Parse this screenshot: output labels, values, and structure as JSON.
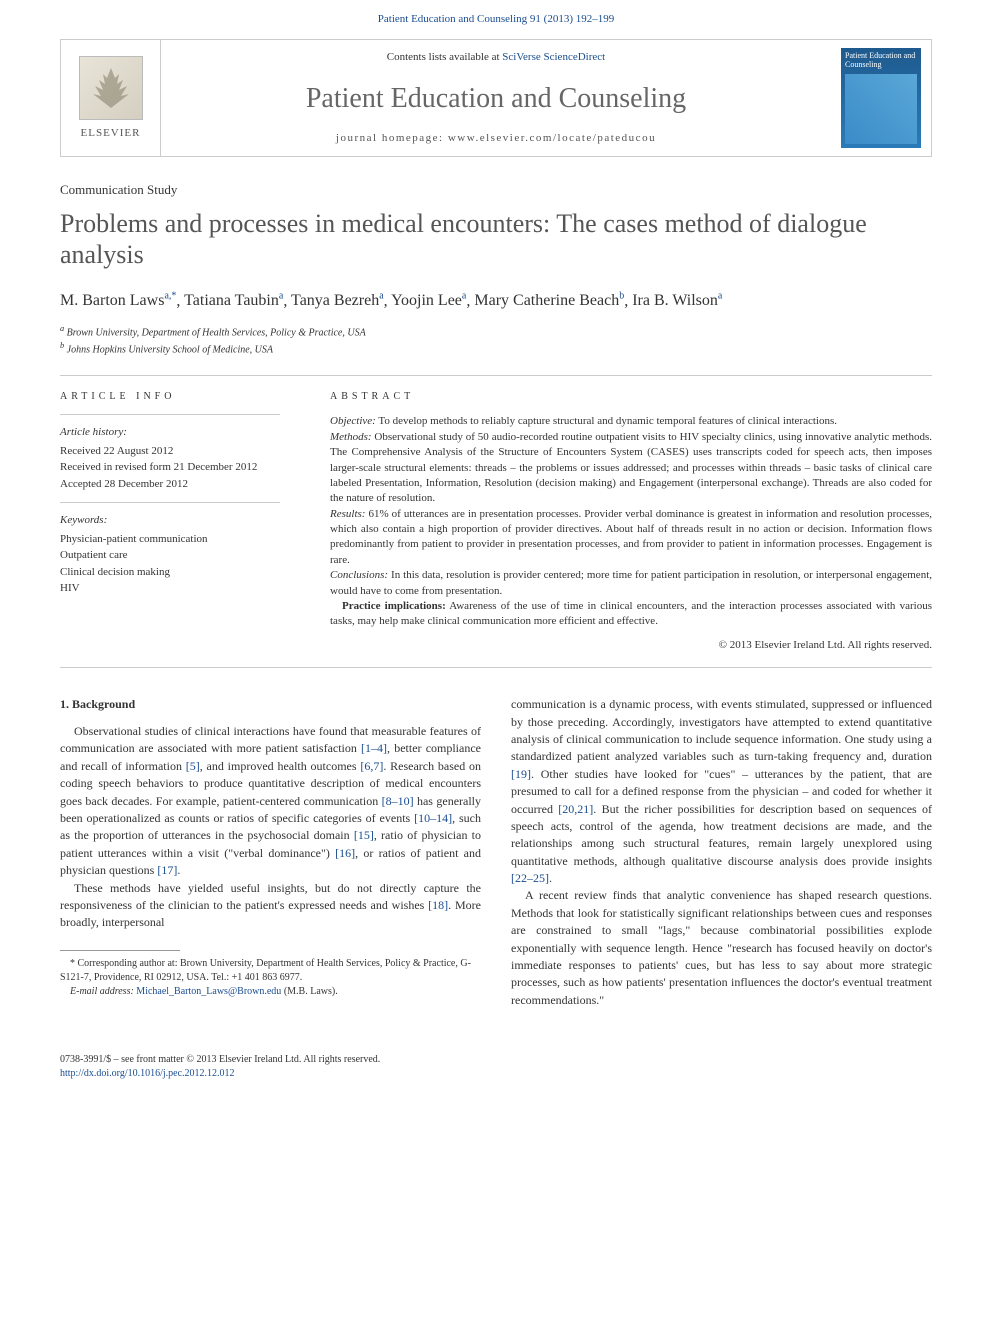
{
  "header_citation": "Patient Education and Counseling 91 (2013) 192–199",
  "banner": {
    "publisher_label": "ELSEVIER",
    "contents_prefix": "Contents lists available at ",
    "contents_link": "SciVerse ScienceDirect",
    "journal_title": "Patient Education and Counseling",
    "homepage_label": "journal homepage: www.elsevier.com/locate/pateducou",
    "cover_title": "Patient Education and Counseling"
  },
  "article": {
    "type": "Communication Study",
    "title": "Problems and processes in medical encounters: The cases method of dialogue analysis",
    "authors_html": "M. Barton Laws",
    "authors": [
      {
        "name": "M. Barton Laws",
        "sup": "a,*"
      },
      {
        "name": "Tatiana Taubin",
        "sup": "a"
      },
      {
        "name": "Tanya Bezreh",
        "sup": "a"
      },
      {
        "name": "Yoojin Lee",
        "sup": "a"
      },
      {
        "name": "Mary Catherine Beach",
        "sup": "b"
      },
      {
        "name": "Ira B. Wilson",
        "sup": "a"
      }
    ],
    "affiliations": [
      {
        "sup": "a",
        "text": "Brown University, Department of Health Services, Policy & Practice, USA"
      },
      {
        "sup": "b",
        "text": "Johns Hopkins University School of Medicine, USA"
      }
    ]
  },
  "info": {
    "label": "ARTICLE INFO",
    "history_heading": "Article history:",
    "history": [
      "Received 22 August 2012",
      "Received in revised form 21 December 2012",
      "Accepted 28 December 2012"
    ],
    "keywords_heading": "Keywords:",
    "keywords": [
      "Physician-patient communication",
      "Outpatient care",
      "Clinical decision making",
      "HIV"
    ]
  },
  "abstract": {
    "label": "ABSTRACT",
    "objective_label": "Objective:",
    "objective": " To develop methods to reliably capture structural and dynamic temporal features of clinical interactions.",
    "methods_label": "Methods:",
    "methods": " Observational study of 50 audio-recorded routine outpatient visits to HIV specialty clinics, using innovative analytic methods. The Comprehensive Analysis of the Structure of Encounters System (CASES) uses transcripts coded for speech acts, then imposes larger-scale structural elements: threads – the problems or issues addressed; and processes within threads – basic tasks of clinical care labeled Presentation, Information, Resolution (decision making) and Engagement (interpersonal exchange). Threads are also coded for the nature of resolution.",
    "results_label": "Results:",
    "results": " 61% of utterances are in presentation processes. Provider verbal dominance is greatest in information and resolution processes, which also contain a high proportion of provider directives. About half of threads result in no action or decision. Information flows predominantly from patient to provider in presentation processes, and from provider to patient in information processes. Engagement is rare.",
    "conclusions_label": "Conclusions:",
    "conclusions": " In this data, resolution is provider centered; more time for patient participation in resolution, or interpersonal engagement, would have to come from presentation.",
    "practice_label": "Practice implications:",
    "practice": " Awareness of the use of time in clinical encounters, and the interaction processes associated with various tasks, may help make clinical communication more efficient and effective.",
    "copyright": "© 2013 Elsevier Ireland Ltd. All rights reserved."
  },
  "body": {
    "heading": "1. Background",
    "col1_p1": "Observational studies of clinical interactions have found that measurable features of communication are associated with more patient satisfaction [1–4], better compliance and recall of information [5], and improved health outcomes [6,7]. Research based on coding speech behaviors to produce quantitative description of medical encounters goes back decades. For example, patient-centered communication [8–10] has generally been operationalized as counts or ratios of specific categories of events [10–14], such as the proportion of utterances in the psychosocial domain [15], ratio of physician to patient utterances within a visit (\"verbal dominance\") [16], or ratios of patient and physician questions [17].",
    "col1_p2": "These methods have yielded useful insights, but do not directly capture the responsiveness of the clinician to the patient's expressed needs and wishes [18]. More broadly, interpersonal",
    "col2_p1": "communication is a dynamic process, with events stimulated, suppressed or influenced by those preceding. Accordingly, investigators have attempted to extend quantitative analysis of clinical communication to include sequence information. One study using a standardized patient analyzed variables such as turn-taking frequency and, duration [19]. Other studies have looked for \"cues\" – utterances by the patient, that are presumed to call for a defined response from the physician – and coded for whether it occurred [20,21]. But the richer possibilities for description based on sequences of speech acts, control of the agenda, how treatment decisions are made, and the relationships among such structural features, remain largely unexplored using quantitative methods, although qualitative discourse analysis does provide insights [22–25].",
    "col2_p2": "A recent review finds that analytic convenience has shaped research questions. Methods that look for statistically significant relationships between cues and responses are constrained to small \"lags,\" because combinatorial possibilities explode exponentially with sequence length. Hence \"research has focused heavily on doctor's immediate responses to patients' cues, but has less to say about more strategic processes, such as how patients' presentation influences the doctor's eventual treatment recommendations.\""
  },
  "footnote": {
    "corr": "* Corresponding author at: Brown University, Department of Health Services, Policy & Practice, G-S121-7, Providence, RI 02912, USA. Tel.: +1 401 863 6977.",
    "email_label": "E-mail address:",
    "email": "Michael_Barton_Laws@Brown.edu",
    "email_who": " (M.B. Laws)."
  },
  "footer": {
    "front_matter": "0738-3991/$ – see front matter © 2013 Elsevier Ireland Ltd. All rights reserved.",
    "doi": "http://dx.doi.org/10.1016/j.pec.2012.12.012"
  },
  "colors": {
    "link": "#1a4d8f"
  }
}
